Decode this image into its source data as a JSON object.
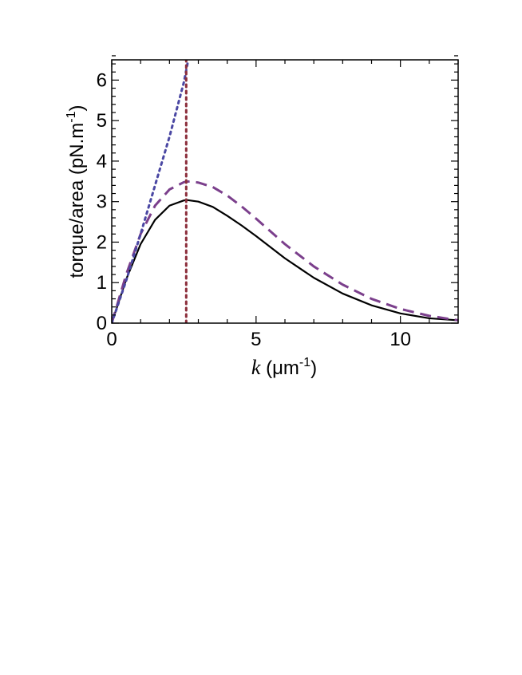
{
  "chart_data": {
    "type": "line",
    "xlabel": {
      "var": "k",
      "unit_prefix": " (μm",
      "unit_exp": "-1",
      "unit_suffix": ")"
    },
    "ylabel": {
      "text": "torque/area (pN.m",
      "exp": "-1",
      "suffix": ")"
    },
    "xlim": [
      0,
      12
    ],
    "ylim": [
      0,
      6.5
    ],
    "x_ticks": [
      0,
      5,
      10
    ],
    "x_tick_labels": [
      "0",
      "5",
      "10"
    ],
    "y_ticks": [
      0,
      1,
      2,
      3,
      4,
      5,
      6
    ],
    "y_tick_labels": [
      "0",
      "1",
      "2",
      "3",
      "4",
      "5",
      "6"
    ],
    "grid": false,
    "series": [
      {
        "style": "solid",
        "color": "#000000",
        "x": [
          0,
          0.5,
          1,
          1.5,
          2,
          2.5,
          2.6,
          3,
          3.5,
          4,
          4.5,
          5,
          6,
          7,
          8,
          9,
          10,
          11,
          12
        ],
        "y": [
          0,
          1.08,
          1.95,
          2.55,
          2.9,
          3.03,
          3.04,
          3.0,
          2.87,
          2.65,
          2.41,
          2.15,
          1.6,
          1.12,
          0.73,
          0.44,
          0.24,
          0.12,
          0.07
        ]
      },
      {
        "style": "dashed",
        "color": "#7b3f8c",
        "x": [
          0,
          0.5,
          1,
          1.5,
          2,
          2.5,
          2.7,
          3,
          3.5,
          4,
          4.5,
          5,
          6,
          7,
          8,
          9,
          10,
          11,
          12
        ],
        "y": [
          0,
          1.2,
          2.2,
          2.9,
          3.3,
          3.48,
          3.5,
          3.47,
          3.36,
          3.15,
          2.88,
          2.58,
          1.95,
          1.4,
          0.95,
          0.6,
          0.35,
          0.18,
          0.07
        ]
      },
      {
        "style": "dotted",
        "color": "#4a47a3",
        "x": [
          0,
          0.5,
          1.0,
          1.5,
          2.0,
          2.5,
          2.65
        ],
        "y": [
          0,
          1.05,
          2.2,
          3.4,
          4.6,
          5.95,
          6.5
        ]
      },
      {
        "style": "dotted",
        "color": "#8b2d3a",
        "x": [
          2.58,
          2.58
        ],
        "y": [
          0,
          6.5
        ]
      }
    ]
  }
}
